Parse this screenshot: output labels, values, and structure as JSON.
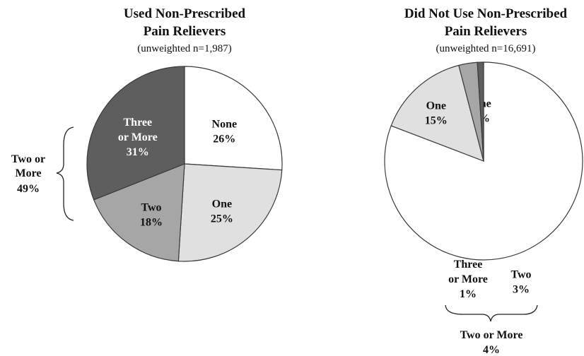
{
  "chart_data": [
    {
      "type": "pie",
      "title": "Used Non-Prescribed Pain Relievers",
      "subtitle": "(unweighted n=1,987)",
      "slices": [
        {
          "label": "None",
          "value": 26,
          "display": "26%",
          "color": "#ffffff"
        },
        {
          "label": "One",
          "value": 25,
          "display": "25%",
          "color": "#e0e0e0"
        },
        {
          "label": "Two",
          "value": 18,
          "display": "18%",
          "color": "#a6a6a6"
        },
        {
          "label": "Three or More",
          "value": 31,
          "display": "31%",
          "color": "#5e5e5e"
        }
      ],
      "group_annotation": {
        "label": "Two or More",
        "value": "49%"
      }
    },
    {
      "type": "pie",
      "title": "Did Not Use Non-Prescribed Pain Relievers",
      "subtitle": "(unweighted n=16,691)",
      "slices": [
        {
          "label": "None",
          "value": 80,
          "display": "80%",
          "color": "#ffffff"
        },
        {
          "label": "One",
          "value": 15,
          "display": "15%",
          "color": "#e0e0e0"
        },
        {
          "label": "Two",
          "value": 3,
          "display": "3%",
          "color": "#a6a6a6"
        },
        {
          "label": "Three or More",
          "value": 1,
          "display": "1%",
          "color": "#5e5e5e"
        }
      ],
      "group_annotation": {
        "label": "Two or More",
        "value": "4%"
      }
    }
  ]
}
